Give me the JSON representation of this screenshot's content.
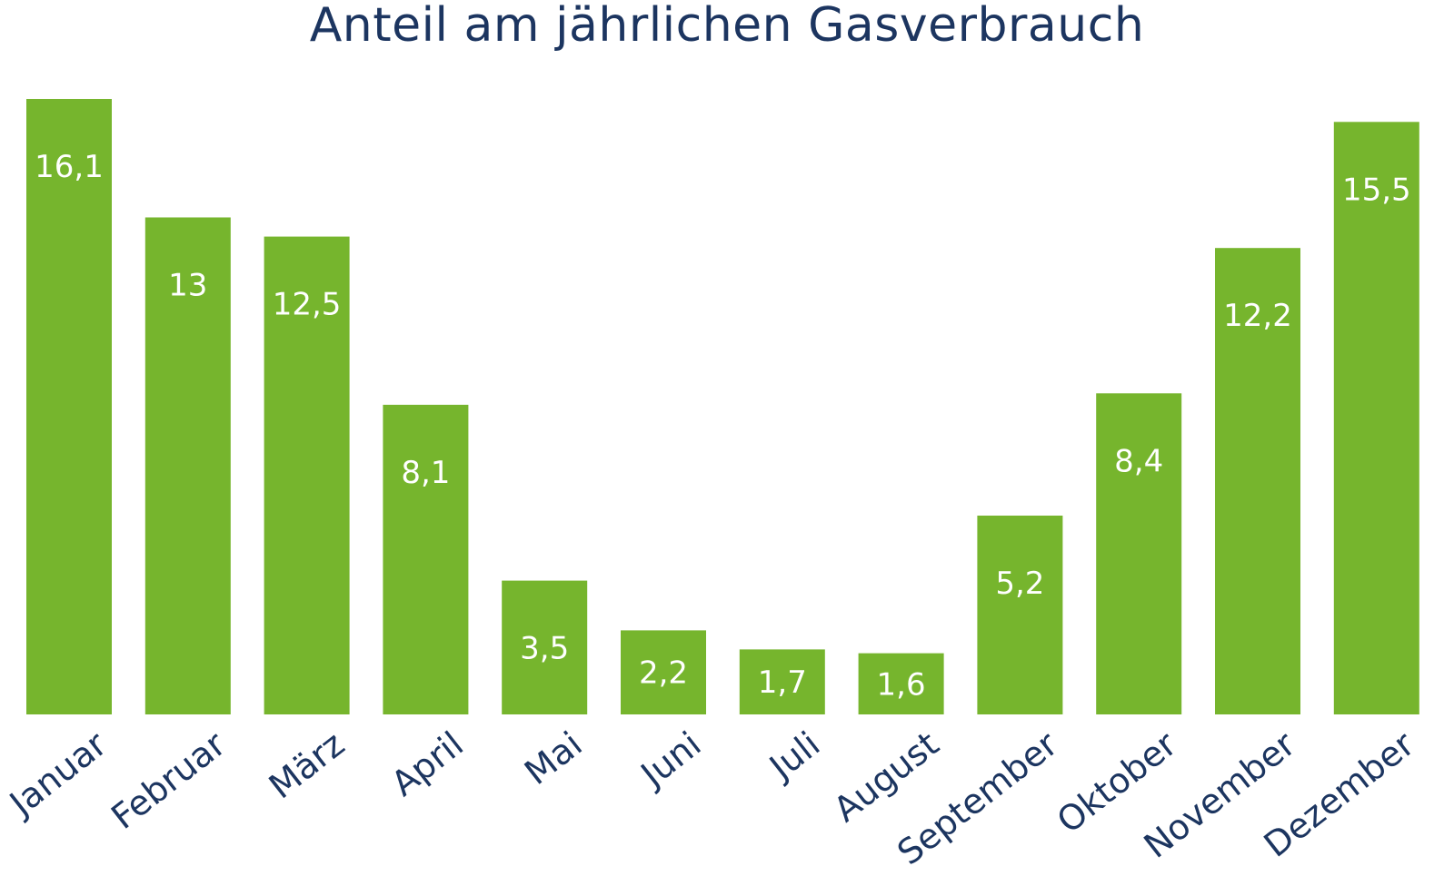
{
  "colors": {
    "bar": "#76b52d",
    "text": "#1c3560",
    "value_label": "#ffffff"
  },
  "chart_data": {
    "type": "bar",
    "title": "Anteil am jährlichen Gasverbrauch",
    "categories": [
      "Januar",
      "Februar",
      "März",
      "April",
      "Mai",
      "Juni",
      "Juli",
      "August",
      "September",
      "Oktober",
      "November",
      "Dezember"
    ],
    "values": [
      16.1,
      13,
      12.5,
      8.1,
      3.5,
      2.2,
      1.7,
      1.6,
      5.2,
      8.4,
      12.2,
      15.5
    ],
    "value_labels": [
      "16,1",
      "13",
      "12,5",
      "8,1",
      "3,5",
      "2,2",
      "1,7",
      "1,6",
      "5,2",
      "8,4",
      "12,2",
      "15,5"
    ],
    "xlabel": "",
    "ylabel": "",
    "ylim": [
      0,
      16.1
    ],
    "grid": false,
    "legend": "none"
  }
}
